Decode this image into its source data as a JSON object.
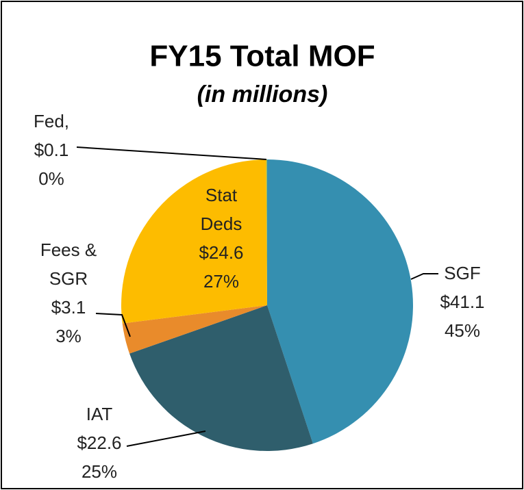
{
  "chart_data": {
    "type": "pie",
    "title": "FY15 Total MOF",
    "subtitle": "(in millions)",
    "categories": [
      "SGF",
      "IAT",
      "Fees & SGR",
      "Stat Deds",
      "Fed,"
    ],
    "values": [
      41.1,
      22.6,
      3.1,
      24.6,
      0.1
    ],
    "value_labels": [
      "$41.1",
      "$22.6",
      "$3.1",
      "$24.6",
      "$0.1"
    ],
    "percent_labels": [
      "45%",
      "25%",
      "3%",
      "27%",
      "0%"
    ],
    "colors": [
      "#358fb0",
      "#2f5e6c",
      "#e98b2b",
      "#fdbc00",
      "#9bbb59"
    ]
  }
}
